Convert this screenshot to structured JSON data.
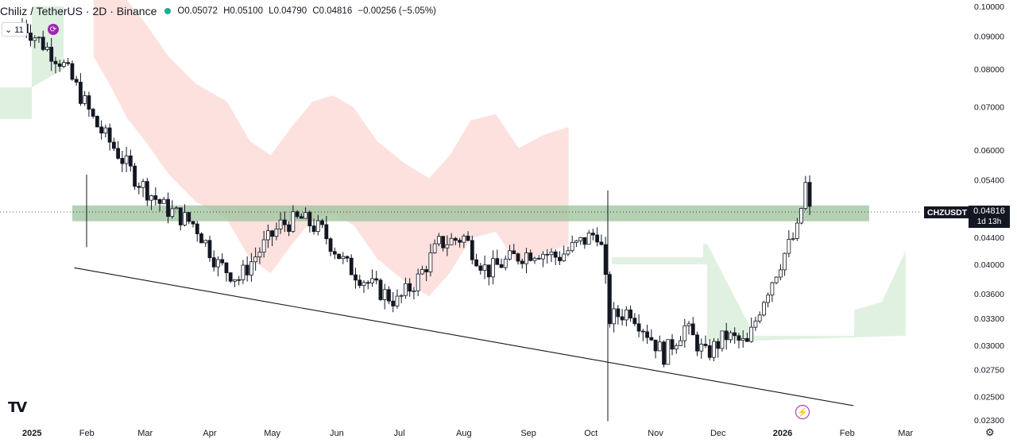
{
  "header": {
    "symbol": "Chiliz / TetherUS · 2D · Binance",
    "open": "O0.05072",
    "high": "H0.05100",
    "low": "L0.04790",
    "close": "C0.04816",
    "change": "−0.00256 (−5.05%)"
  },
  "toolbar": {
    "collapse_label": "⌄ 11",
    "replay_icon": "replay-icon"
  },
  "price_label": {
    "ticker": "CHZUSDT",
    "price": "0.04816",
    "countdown": "1d 13h"
  },
  "icons": {
    "logo": "tradingview-logo",
    "bolt": "bolt-icon",
    "settings": "gear-icon"
  },
  "colors": {
    "up": "#131722",
    "down": "#131722",
    "zone": "#9bc29b",
    "cloud_bear": "#f9c9c3",
    "cloud_bull": "#c8e6c9",
    "trendline": "#131722"
  },
  "chart_data": {
    "type": "candlestick",
    "symbol": "CHZUSDT",
    "timeframe": "2D",
    "y_scale": "log",
    "ylim": [
      0.023,
      0.1
    ],
    "y_ticks": [
      0.1,
      0.09,
      0.08,
      0.07,
      0.06,
      0.054,
      0.048,
      0.044,
      0.04,
      0.036,
      0.033,
      0.03,
      0.0275,
      0.025,
      0.023
    ],
    "y_tick_labels": [
      "0.10000",
      "0.09000",
      "0.08000",
      "0.07000",
      "0.06000",
      "0.05400",
      "0.04816",
      "0.04400",
      "0.04000",
      "0.03600",
      "0.03300",
      "0.03000",
      "0.02750",
      "0.02500",
      "0.02300"
    ],
    "x_tick_labels": [
      "2025",
      "Feb",
      "Mar",
      "Apr",
      "May",
      "Jun",
      "Jul",
      "Aug",
      "Sep",
      "Oct",
      "Nov",
      "Dec",
      "2026",
      "Feb",
      "Mar"
    ],
    "x_tick_dates": [
      "2025-01-01",
      "2025-02-01",
      "2025-03-01",
      "2025-04-01",
      "2025-05-01",
      "2025-06-01",
      "2025-07-01",
      "2025-08-01",
      "2025-09-01",
      "2025-10-01",
      "2025-11-01",
      "2025-12-01",
      "2026-01-01",
      "2026-02-01",
      "2026-03-01"
    ],
    "last_price": 0.04816,
    "support_zone": [
      0.0466,
      0.0493
    ],
    "trendline": [
      {
        "date": "2025-01-26",
        "price": 0.0395
      },
      {
        "date": "2026-02-04",
        "price": 0.0242
      }
    ],
    "price_path": [
      {
        "date": "2025-01-01",
        "price": 0.094
      },
      {
        "date": "2025-01-10",
        "price": 0.088
      },
      {
        "date": "2025-01-20",
        "price": 0.082
      },
      {
        "date": "2025-01-28",
        "price": 0.074
      },
      {
        "date": "2025-02-05",
        "price": 0.066
      },
      {
        "date": "2025-02-15",
        "price": 0.06
      },
      {
        "date": "2025-02-25",
        "price": 0.054
      },
      {
        "date": "2025-03-10",
        "price": 0.049
      },
      {
        "date": "2025-03-25",
        "price": 0.046
      },
      {
        "date": "2025-04-05",
        "price": 0.04
      },
      {
        "date": "2025-04-15",
        "price": 0.038
      },
      {
        "date": "2025-04-25",
        "price": 0.042
      },
      {
        "date": "2025-05-05",
        "price": 0.046
      },
      {
        "date": "2025-05-15",
        "price": 0.047
      },
      {
        "date": "2025-05-25",
        "price": 0.045
      },
      {
        "date": "2025-06-05",
        "price": 0.04
      },
      {
        "date": "2025-06-18",
        "price": 0.037
      },
      {
        "date": "2025-06-30",
        "price": 0.035
      },
      {
        "date": "2025-07-10",
        "price": 0.038
      },
      {
        "date": "2025-07-20",
        "price": 0.043
      },
      {
        "date": "2025-08-01",
        "price": 0.044
      },
      {
        "date": "2025-08-12",
        "price": 0.039
      },
      {
        "date": "2025-08-25",
        "price": 0.041
      },
      {
        "date": "2025-09-05",
        "price": 0.042
      },
      {
        "date": "2025-09-15",
        "price": 0.041
      },
      {
        "date": "2025-09-25",
        "price": 0.043
      },
      {
        "date": "2025-10-05",
        "price": 0.045
      },
      {
        "date": "2025-10-10",
        "price": 0.033
      },
      {
        "date": "2025-10-20",
        "price": 0.034
      },
      {
        "date": "2025-11-05",
        "price": 0.029
      },
      {
        "date": "2025-11-15",
        "price": 0.032
      },
      {
        "date": "2025-11-25",
        "price": 0.029
      },
      {
        "date": "2025-12-05",
        "price": 0.031
      },
      {
        "date": "2025-12-15",
        "price": 0.03
      },
      {
        "date": "2025-12-22",
        "price": 0.035
      },
      {
        "date": "2026-01-01",
        "price": 0.041
      },
      {
        "date": "2026-01-08",
        "price": 0.045
      },
      {
        "date": "2026-01-12",
        "price": 0.053
      },
      {
        "date": "2026-01-14",
        "price": 0.04816
      }
    ]
  }
}
